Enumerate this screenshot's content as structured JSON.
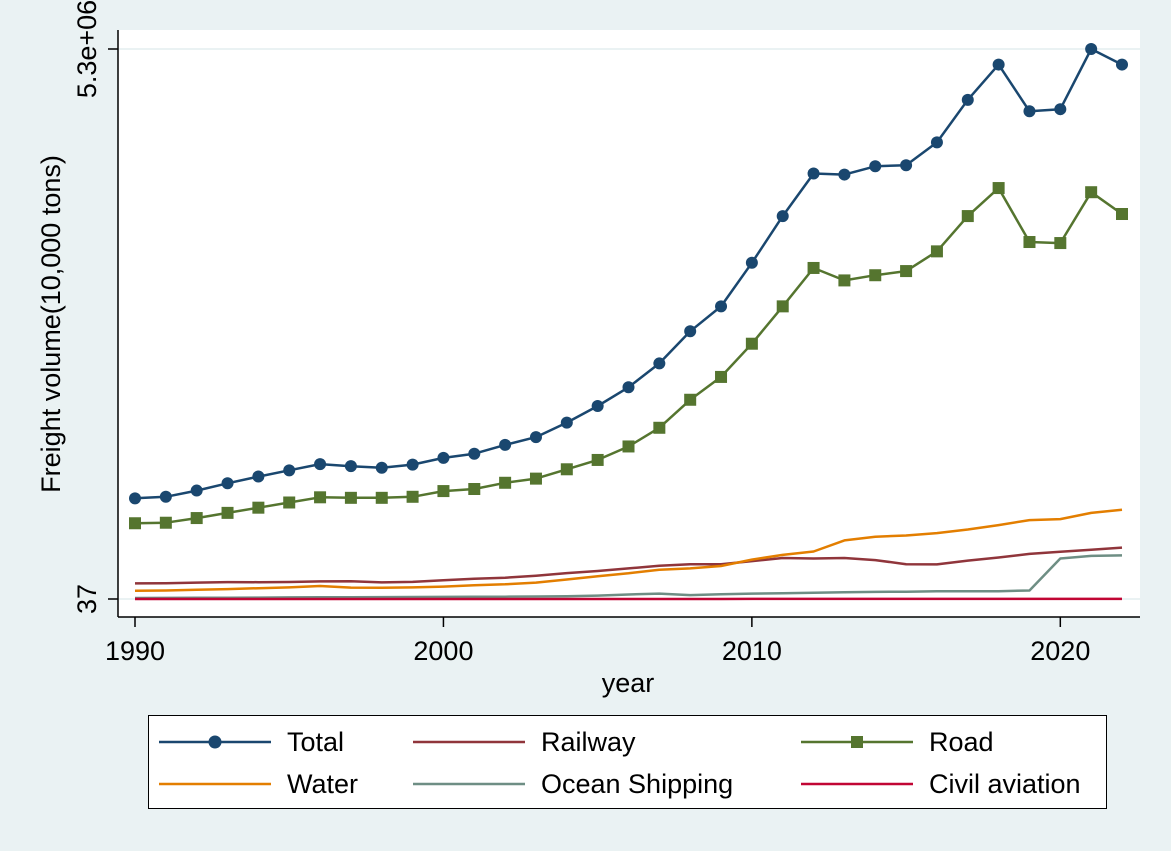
{
  "chart_data": {
    "type": "line",
    "title": "",
    "xlabel": "year",
    "ylabel": "Freight volume(10,000 tons)",
    "xlim": [
      1990,
      2022
    ],
    "ylim": [
      37,
      5300000
    ],
    "x_ticks": [
      1990,
      2000,
      2010,
      2020
    ],
    "x_tick_labels": [
      "1990",
      "2000",
      "2010",
      "2020"
    ],
    "y_ticks": [
      37,
      5300000
    ],
    "y_tick_labels": [
      "37",
      "5.3e+06"
    ],
    "x": [
      1990,
      1991,
      1992,
      1993,
      1994,
      1995,
      1996,
      1997,
      1998,
      1999,
      2000,
      2001,
      2002,
      2003,
      2004,
      2005,
      2006,
      2007,
      2008,
      2009,
      2010,
      2011,
      2012,
      2013,
      2014,
      2015,
      2016,
      2017,
      2018,
      2019,
      2020,
      2021,
      2022
    ],
    "series": [
      {
        "name": "Total",
        "color": "#1a476f",
        "marker": "circle",
        "values": [
          970000,
          985000,
          1045000,
          1115000,
          1180000,
          1240000,
          1300000,
          1280000,
          1265000,
          1295000,
          1360000,
          1400000,
          1485000,
          1560000,
          1700000,
          1860000,
          2040000,
          2270000,
          2580000,
          2820000,
          3240000,
          3690000,
          4100000,
          4090000,
          4170000,
          4180000,
          4400000,
          4810000,
          5150000,
          4700000,
          4720000,
          5300000,
          5150000
        ]
      },
      {
        "name": "Railway",
        "color": "#90353b",
        "values": [
          150000,
          152000,
          158000,
          163000,
          162000,
          164000,
          170000,
          172000,
          160000,
          165000,
          180000,
          195000,
          205000,
          225000,
          250000,
          270000,
          295000,
          320000,
          335000,
          335000,
          365000,
          395000,
          390000,
          395000,
          375000,
          335000,
          333000,
          370000,
          400000,
          435000,
          455000,
          475000,
          495000
        ]
      },
      {
        "name": "Road",
        "color": "#55752f",
        "marker": "square",
        "values": [
          730000,
          735000,
          780000,
          830000,
          880000,
          930000,
          980000,
          975000,
          975000,
          985000,
          1040000,
          1060000,
          1120000,
          1160000,
          1250000,
          1340000,
          1470000,
          1650000,
          1920000,
          2140000,
          2460000,
          2820000,
          3190000,
          3070000,
          3120000,
          3160000,
          3350000,
          3690000,
          3960000,
          3440000,
          3430000,
          3920000,
          3710000
        ]
      },
      {
        "name": "Water",
        "color": "#e37e00",
        "values": [
          80000,
          82000,
          90000,
          95000,
          104000,
          112000,
          125000,
          110000,
          108000,
          112000,
          120000,
          132000,
          142000,
          158000,
          188000,
          220000,
          248000,
          282000,
          295000,
          318000,
          380000,
          425000,
          458000,
          565000,
          600000,
          612000,
          635000,
          670000,
          712000,
          760000,
          770000,
          830000,
          860000
        ]
      },
      {
        "name": "Ocean Shipping",
        "color": "#6e8e84",
        "values": [
          10000,
          11000,
          12000,
          13000,
          14000,
          15000,
          16000,
          17000,
          18000,
          19000,
          20000,
          21000,
          22000,
          24000,
          27000,
          33000,
          43000,
          52000,
          38000,
          45000,
          52000,
          56000,
          60000,
          65000,
          68000,
          70000,
          75000,
          74000,
          75000,
          82000,
          390000,
          415000,
          420000
        ]
      },
      {
        "name": "Civil aviation",
        "color": "#c10534",
        "values": [
          37,
          45,
          58,
          70,
          83,
          101,
          115,
          125,
          140,
          170,
          197,
          171,
          202,
          219,
          277,
          307,
          349,
          402,
          408,
          446,
          563,
          557,
          545,
          561,
          594,
          629,
          668,
          706,
          739,
          753,
          677,
          732,
          608
        ]
      }
    ],
    "legend": {
      "placement": "bottom",
      "entries": [
        "Total",
        "Railway",
        "Road",
        "Water",
        "Ocean Shipping",
        "Civil aviation"
      ]
    }
  }
}
